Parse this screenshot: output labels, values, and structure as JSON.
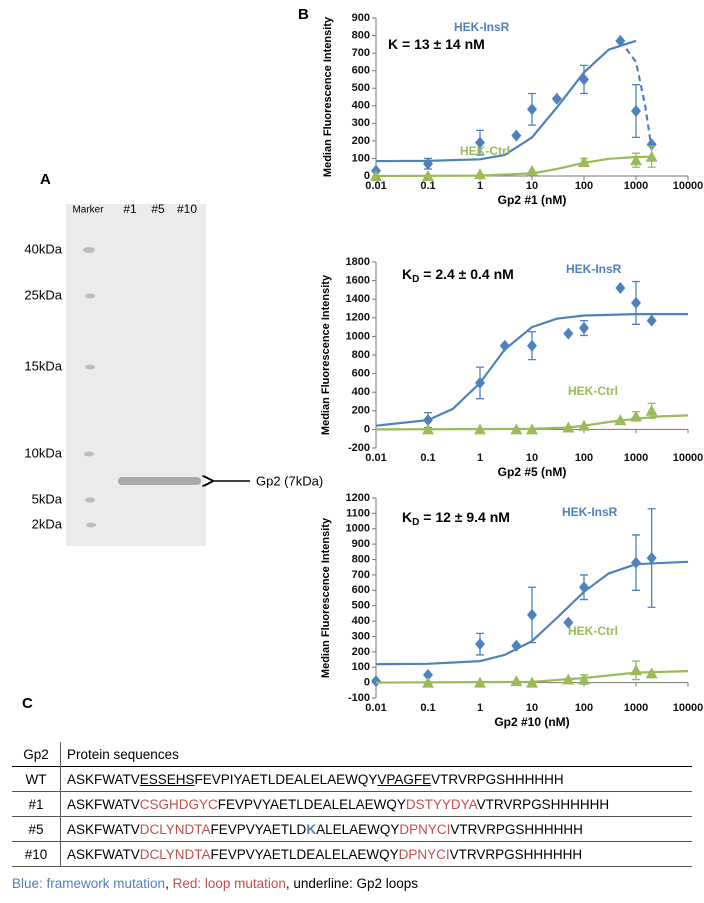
{
  "panels": {
    "a": "A",
    "b": "B",
    "c": "C"
  },
  "gel": {
    "lanes": [
      "Marker",
      "#1",
      "#5",
      "#10"
    ],
    "markers": [
      "40kDa",
      "25kDa",
      "15kDa",
      "10kDa",
      "5kDa",
      "2kDa"
    ],
    "band_label": "Gp2 (7kDa)"
  },
  "chart_data": [
    {
      "type": "scatter",
      "x_label": "Gp2 #1 (nM)",
      "y_label": "Median Fluorescence Intensity",
      "annotation": {
        "text": "K = 13 ±  14 nM"
      },
      "xscale": "log",
      "xlim": [
        0.01,
        10000
      ],
      "xticks": [
        0.01,
        0.1,
        1,
        10,
        100,
        1000,
        10000
      ],
      "ylim": [
        0,
        900
      ],
      "yticks": [
        0,
        100,
        200,
        300,
        400,
        500,
        600,
        700,
        800,
        900
      ],
      "grid": false,
      "series": [
        {
          "name": "HEK-InsR",
          "color": "#4f81bd",
          "marker": "diamond",
          "x": [
            0.01,
            0.1,
            1,
            5,
            10,
            30,
            100,
            500,
            1000,
            2000
          ],
          "values": [
            30,
            70,
            190,
            230,
            380,
            440,
            550,
            770,
            370,
            180
          ],
          "errors": [
            null,
            30,
            70,
            null,
            90,
            null,
            80,
            null,
            150,
            null
          ],
          "fits": [
            {
              "dashed": false,
              "x": [
                0.01,
                0.1,
                1,
                3,
                10,
                30,
                100,
                300,
                1000
              ],
              "values": [
                85,
                86,
                95,
                120,
                220,
                390,
                590,
                720,
                770
              ]
            },
            {
              "dashed": true,
              "x": [
                500,
                1000,
                1500,
                2000
              ],
              "values": [
                770,
                650,
                400,
                150
              ]
            }
          ]
        },
        {
          "name": "HEK-Ctrl",
          "color": "#9bbb59",
          "marker": "triangle",
          "x": [
            0.01,
            0.1,
            1,
            10,
            100,
            1000,
            2000
          ],
          "values": [
            0,
            0,
            10,
            30,
            80,
            90,
            110
          ],
          "errors": [
            null,
            null,
            null,
            null,
            20,
            40,
            60
          ],
          "fits": [
            {
              "dashed": false,
              "x": [
                0.01,
                1,
                10,
                30,
                100,
                300,
                1000,
                2000
              ],
              "values": [
                0,
                2,
                15,
                40,
                75,
                98,
                108,
                110
              ]
            }
          ]
        }
      ]
    },
    {
      "type": "scatter",
      "x_label": "Gp2 #5 (nM)",
      "y_label": "Median Fluorescence Intensity",
      "annotation": {
        "text": "K",
        "sub": "D",
        "rest": " = 2.4 ± 0.4 nM"
      },
      "xscale": "log",
      "xlim": [
        0.01,
        10000
      ],
      "xticks": [
        0.01,
        0.1,
        1,
        10,
        100,
        1000,
        10000
      ],
      "ylim": [
        -200,
        1800
      ],
      "yticks": [
        -200,
        0,
        200,
        400,
        600,
        800,
        1000,
        1200,
        1400,
        1600,
        1800
      ],
      "grid": false,
      "series": [
        {
          "name": "HEK-InsR",
          "color": "#4f81bd",
          "marker": "diamond",
          "x": [
            0.1,
            1,
            3,
            10,
            50,
            100,
            500,
            1000,
            2000
          ],
          "values": [
            100,
            500,
            900,
            900,
            1030,
            1090,
            1520,
            1360,
            1170
          ],
          "errors": [
            80,
            170,
            null,
            150,
            null,
            80,
            null,
            230,
            null
          ],
          "fits": [
            {
              "dashed": false,
              "x": [
                0.01,
                0.1,
                0.3,
                1,
                3,
                10,
                30,
                100,
                1000,
                10000
              ],
              "values": [
                40,
                100,
                220,
                500,
                860,
                1100,
                1190,
                1225,
                1240,
                1240
              ]
            }
          ]
        },
        {
          "name": "HEK-Ctrl",
          "color": "#9bbb59",
          "marker": "triangle",
          "x": [
            0.1,
            1,
            5,
            10,
            50,
            100,
            500,
            1000,
            2000
          ],
          "values": [
            0,
            0,
            0,
            0,
            20,
            40,
            100,
            140,
            200
          ],
          "errors": [
            null,
            null,
            null,
            null,
            null,
            null,
            null,
            50,
            80
          ],
          "fits": [
            {
              "dashed": false,
              "x": [
                0.01,
                10,
                50,
                100,
                300,
                1000,
                3000,
                10000
              ],
              "values": [
                0,
                5,
                20,
                40,
                80,
                115,
                140,
                150
              ]
            }
          ]
        }
      ]
    },
    {
      "type": "scatter",
      "x_label": "Gp2 #10 (nM)",
      "y_label": "Median Fluorescence Intensity",
      "annotation": {
        "text": "K",
        "sub": "D",
        "rest": " = 12 ± 9.4 nM"
      },
      "xscale": "log",
      "xlim": [
        0.01,
        10000
      ],
      "xticks": [
        0.01,
        0.1,
        1,
        10,
        100,
        1000,
        10000
      ],
      "ylim": [
        -100,
        1200
      ],
      "yticks": [
        -100,
        0,
        100,
        200,
        300,
        400,
        500,
        600,
        700,
        800,
        900,
        1000,
        1100,
        1200
      ],
      "grid": false,
      "series": [
        {
          "name": "HEK-InsR",
          "color": "#4f81bd",
          "marker": "diamond",
          "x": [
            0.01,
            0.1,
            1,
            5,
            10,
            50,
            100,
            1000,
            2000
          ],
          "values": [
            10,
            50,
            250,
            240,
            440,
            390,
            620,
            780,
            810
          ],
          "errors": [
            null,
            null,
            70,
            null,
            180,
            null,
            80,
            180,
            320
          ],
          "fits": [
            {
              "dashed": false,
              "x": [
                0.01,
                0.1,
                1,
                3,
                10,
                30,
                100,
                300,
                1000,
                10000
              ],
              "values": [
                120,
                122,
                140,
                180,
                270,
                420,
                590,
                710,
                770,
                785
              ]
            }
          ]
        },
        {
          "name": "HEK-Ctrl",
          "color": "#9bbb59",
          "marker": "triangle",
          "x": [
            0.1,
            1,
            5,
            10,
            50,
            100,
            1000,
            2000
          ],
          "values": [
            0,
            0,
            10,
            0,
            20,
            20,
            80,
            60
          ],
          "errors": [
            null,
            null,
            null,
            null,
            null,
            30,
            60,
            null
          ],
          "fits": [
            {
              "dashed": false,
              "x": [
                0.01,
                10,
                100,
                1000,
                10000
              ],
              "values": [
                0,
                5,
                30,
                65,
                75
              ]
            }
          ]
        }
      ]
    }
  ],
  "table": {
    "header": [
      "Gp2",
      "Protein sequences"
    ],
    "rows": [
      {
        "label": "WT",
        "segments": [
          {
            "text": "ASKFWATV",
            "style": "plain"
          },
          {
            "text": "ESSEHS",
            "style": "underline"
          },
          {
            "text": "FEVPIYAETLDEALELAEWQY",
            "style": "plain"
          },
          {
            "text": "VPAGFE",
            "style": "underline"
          },
          {
            "text": "VTRVRPGSHHHHHH",
            "style": "plain"
          }
        ]
      },
      {
        "label": "#1",
        "segments": [
          {
            "text": "ASKFWATV",
            "style": "plain"
          },
          {
            "text": "CSGHDGYC",
            "style": "loop"
          },
          {
            "text": "FEVPVYAETLDEALELAEWQY",
            "style": "plain"
          },
          {
            "text": "DSTYYDYA",
            "style": "loop"
          },
          {
            "text": "VTRVRPGSHHHHHH",
            "style": "plain"
          }
        ]
      },
      {
        "label": "#5",
        "segments": [
          {
            "text": "ASKFWATV",
            "style": "plain"
          },
          {
            "text": "DCLYNDTA",
            "style": "loop"
          },
          {
            "text": "FEVPVYAETLD",
            "style": "plain"
          },
          {
            "text": "K",
            "style": "framework"
          },
          {
            "text": "ALELAEWQY",
            "style": "plain"
          },
          {
            "text": "DPNYCI",
            "style": "loop"
          },
          {
            "text": "VTRVRPGSHHHHHH",
            "style": "plain"
          }
        ]
      },
      {
        "label": "#10",
        "segments": [
          {
            "text": "ASKFWATV",
            "style": "plain"
          },
          {
            "text": "DCLYNDTA",
            "style": "loop"
          },
          {
            "text": "FEVPVYAETLDEALELAEWQY",
            "style": "plain"
          },
          {
            "text": "DPNYCI",
            "style": "loop"
          },
          {
            "text": "VTRVRPGSHHHHHH",
            "style": "plain"
          }
        ]
      }
    ],
    "legend": [
      {
        "text": "Blue: framework mutation",
        "style": "framework"
      },
      {
        "text": ", ",
        "style": "plain"
      },
      {
        "text": "Red: loop mutation",
        "style": "loop"
      },
      {
        "text": ", underline: Gp2 loops",
        "style": "plain"
      }
    ]
  }
}
